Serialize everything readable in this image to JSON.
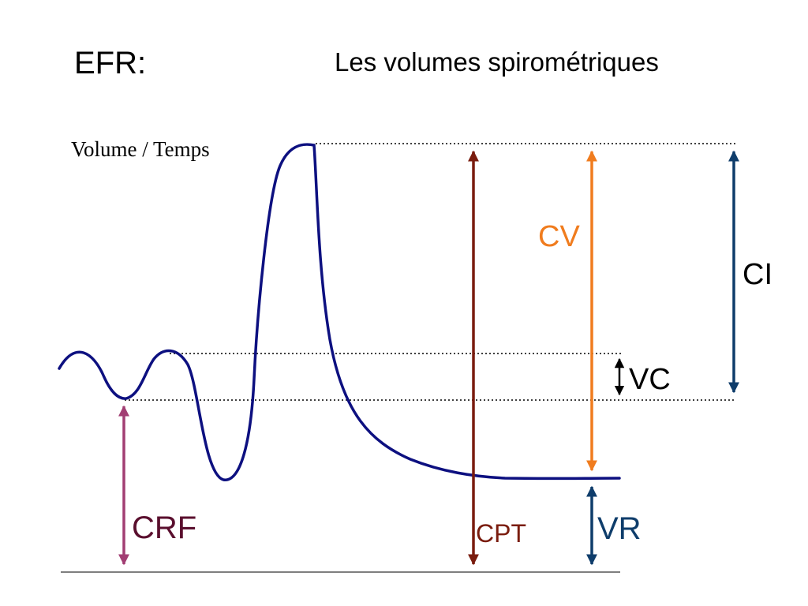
{
  "slide": {
    "prefix": "EFR:",
    "title": "Les volumes spirométriques",
    "caption": "Volume / Temps"
  },
  "labels": {
    "cv": "CV",
    "ci": "CI",
    "vc": "VC",
    "crf": "CRF",
    "cpt": "CPT",
    "vr": "VR"
  },
  "colors": {
    "trace": "#0d1080",
    "cv": "#f07c1e",
    "cpt": "#7a1c0e",
    "ci": "#0f3d6b",
    "vr": "#0f3d6b",
    "crf": "#a23e73",
    "crf_label": "#5a0f2e",
    "vc": "#000000",
    "baseline": "#555555"
  }
}
